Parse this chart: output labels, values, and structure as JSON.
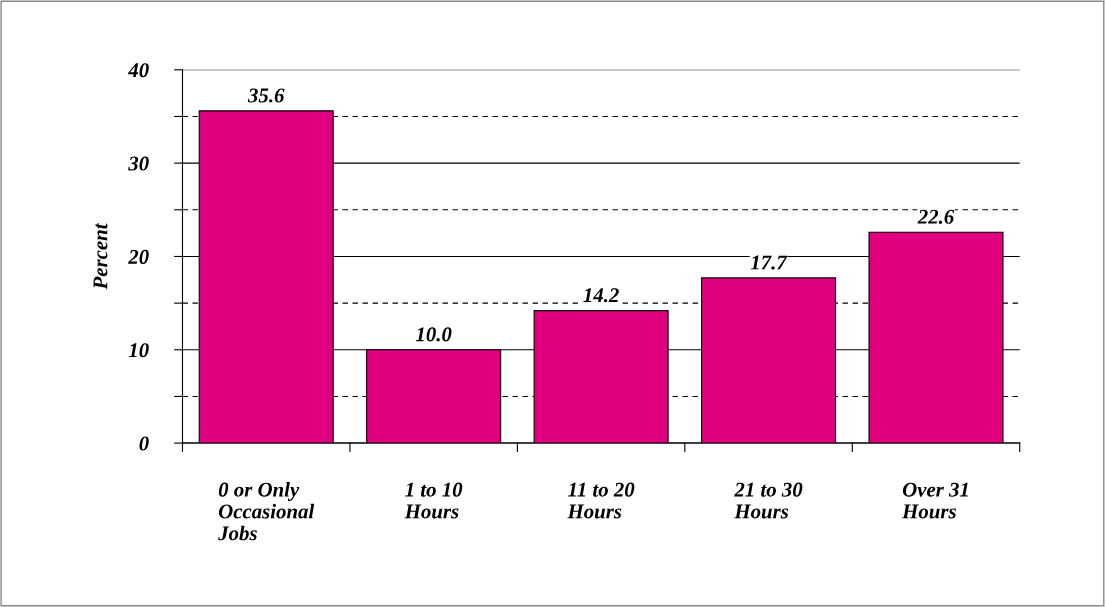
{
  "chart_data": {
    "type": "bar",
    "ylabel": "Percent",
    "categories": [
      "0 or Only\nOccasional\nJobs",
      "1 to 10\nHours",
      "11 to 20\nHours",
      "21 to 30\nHours",
      "Over 31\nHours"
    ],
    "values": [
      35.6,
      10.0,
      14.2,
      17.7,
      22.6
    ],
    "color": "#e0007f",
    "ylim": [
      0,
      40
    ],
    "yticks": [
      0,
      {
        "value": 5,
        "label": null
      },
      10,
      {
        "value": 15,
        "label": null
      },
      20,
      {
        "value": 25,
        "label": null
      },
      30,
      {
        "value": 35,
        "label": null
      },
      40
    ],
    "grid": "y",
    "value_labels": [
      "35.6",
      "10.0",
      "14.2",
      "17.7",
      "22.6"
    ]
  }
}
